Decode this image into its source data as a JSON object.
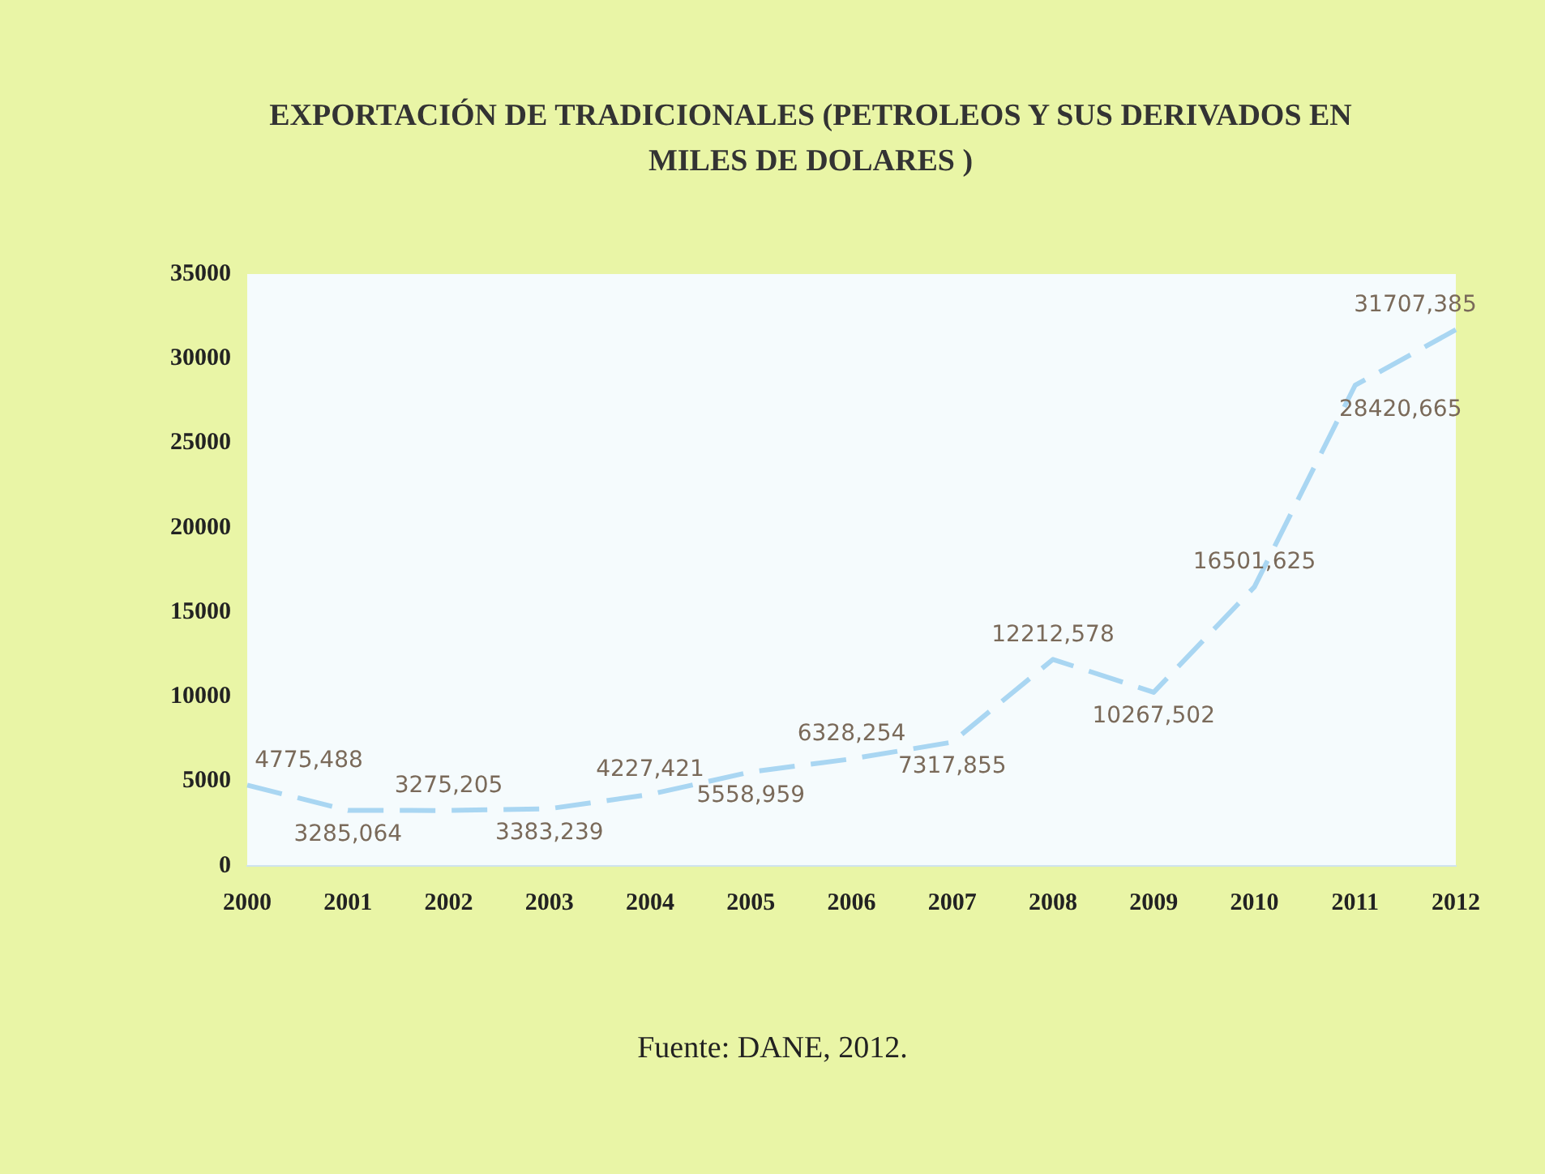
{
  "chart_data": {
    "type": "line",
    "title": "EXPORTACIÓN DE TRADICIONALES (PETROLEOS Y SUS DERIVADOS EN MILES DE DOLARES )",
    "categories": [
      "2000",
      "2001",
      "2002",
      "2003",
      "2004",
      "2005",
      "2006",
      "2007",
      "2008",
      "2009",
      "2010",
      "2011",
      "2012"
    ],
    "values": [
      4775.488,
      3285.064,
      3275.205,
      3383.239,
      4227.421,
      5558.959,
      6328.254,
      7317.855,
      12212.578,
      10267.502,
      16501.625,
      28420.665,
      31707.385
    ],
    "value_labels": [
      "4775,488",
      "3285,064",
      "3275,205",
      "3383,239",
      "4227,421",
      "5558,959",
      "6328,254",
      "7317,855",
      "12212,578",
      "10267,502",
      "16501,625",
      "28420,665",
      "31707,385"
    ],
    "color": "#a9d6f2",
    "line_style": "dashed",
    "marker": "none",
    "grid": false,
    "legend": false,
    "ylim": [
      0,
      35000
    ],
    "yticks": [
      0,
      5000,
      10000,
      15000,
      20000,
      25000,
      30000,
      35000
    ],
    "annotations": [
      "Fuente: DANE, 2012."
    ]
  }
}
